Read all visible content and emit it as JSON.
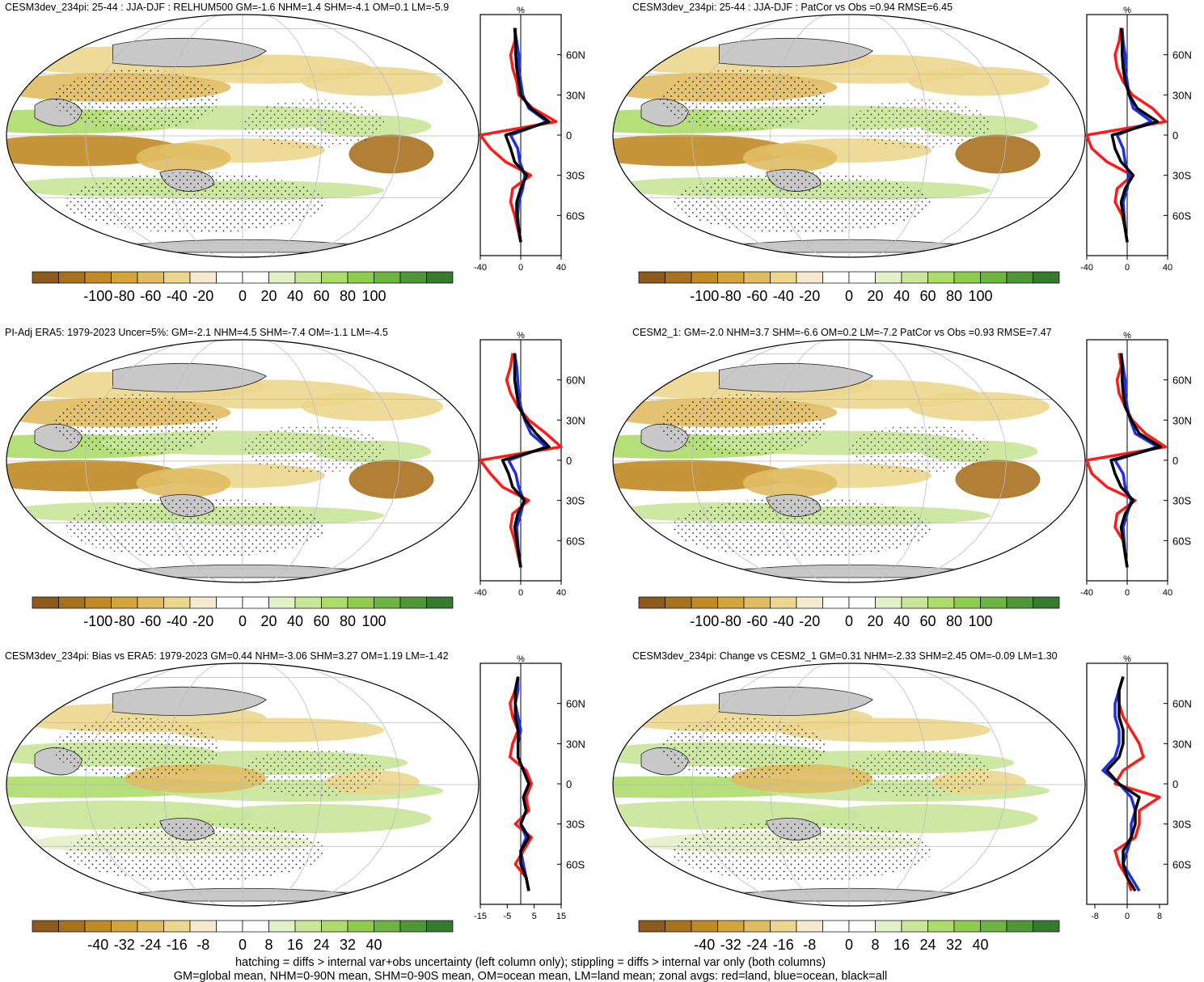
{
  "figure": {
    "footer_line1": "hatching = diffs > internal var+obs uncertainty (left column only); stippling = diffs > internal var only (both columns)",
    "footer_line2": "GM=global mean, NHM=0-90N mean, SHM=0-90S mean, OM=ocean mean, LM=land mean; zonal avgs: red=land, blue=ocean, black=all"
  },
  "chart_data": [
    {
      "type": "heatmap",
      "id": "p1",
      "title": "CESM3dev_234pi: 25-44 : JJA-DJF : RELHUM500 GM=-1.6 NHM=1.4 SHM=-4.1 OM=0.1 LM=-5.9",
      "colorbar": {
        "ticks": [
          "-100",
          "-80",
          "-60",
          "-40",
          "-20",
          "0",
          "20",
          "40",
          "60",
          "80",
          "100"
        ],
        "range": [
          -100,
          100
        ]
      },
      "zonal": {
        "unit": "%",
        "xlim": [
          -40,
          40
        ],
        "xticks": [
          "-40",
          "0",
          "40"
        ],
        "yticks": [
          "60N",
          "30N",
          "0",
          "30S",
          "60S"
        ],
        "lat": [
          80,
          70,
          60,
          50,
          40,
          30,
          20,
          10,
          0,
          -10,
          -20,
          -30,
          -40,
          -50,
          -60,
          -70,
          -80
        ],
        "land": [
          -5,
          -6,
          -10,
          -8,
          -4,
          -2,
          12,
          35,
          -40,
          -30,
          -15,
          10,
          -8,
          -10,
          -6,
          -3,
          0
        ],
        "ocean": [
          -6,
          -4,
          -2,
          -2,
          0,
          2,
          8,
          26,
          -10,
          -3,
          -1,
          4,
          2,
          -2,
          -3,
          -2,
          0
        ],
        "all": [
          -6,
          -5,
          -5,
          -4,
          -2,
          0,
          10,
          28,
          -15,
          -10,
          -6,
          6,
          0,
          -4,
          -4,
          -2,
          0
        ]
      }
    },
    {
      "type": "heatmap",
      "id": "p2",
      "title": "CESM3dev_234pi: 25-44 : JJA-DJF : PatCor vs Obs =0.94 RMSE=6.45",
      "colorbar": {
        "ticks": [
          "-100",
          "-80",
          "-60",
          "-40",
          "-20",
          "0",
          "20",
          "40",
          "60",
          "80",
          "100"
        ],
        "range": [
          -100,
          100
        ]
      },
      "zonal": {
        "unit": "%",
        "xlim": [
          -40,
          40
        ],
        "xticks": [
          "-40",
          "0",
          "40"
        ],
        "yticks": [
          "60N",
          "30N",
          "0",
          "30S",
          "60S"
        ],
        "lat": [
          80,
          70,
          60,
          50,
          40,
          30,
          20,
          10,
          0,
          -10,
          -20,
          -30,
          -40,
          -50,
          -60,
          -70,
          -80
        ],
        "land": [
          -6,
          -8,
          -12,
          -10,
          -4,
          5,
          25,
          38,
          -40,
          -35,
          -20,
          5,
          -10,
          -12,
          -5,
          -2,
          0
        ],
        "ocean": [
          -5,
          -4,
          -2,
          -2,
          0,
          2,
          6,
          24,
          -10,
          -4,
          -2,
          2,
          0,
          -4,
          -3,
          -2,
          0
        ],
        "all": [
          -6,
          -5,
          -5,
          -4,
          -2,
          2,
          10,
          30,
          -15,
          -12,
          -6,
          6,
          -2,
          -6,
          -4,
          -2,
          0
        ]
      }
    },
    {
      "type": "heatmap",
      "id": "p3",
      "title": "PI-Adj ERA5: 1979-2023 Uncer=5%: GM=-2.1 NHM=4.5 SHM=-7.4 OM=-1.1 LM=-4.5",
      "colorbar": {
        "ticks": [
          "-100",
          "-80",
          "-60",
          "-40",
          "-20",
          "0",
          "20",
          "40",
          "60",
          "80",
          "100"
        ],
        "range": [
          -100,
          100
        ]
      },
      "zonal": {
        "unit": "%",
        "xlim": [
          -40,
          40
        ],
        "xticks": [
          "-40",
          "0",
          "40"
        ],
        "yticks": [
          "60N",
          "30N",
          "0",
          "30S",
          "60S"
        ],
        "lat": [
          80,
          70,
          60,
          50,
          40,
          30,
          20,
          10,
          0,
          -10,
          -20,
          -30,
          -40,
          -50,
          -60,
          -70,
          -80
        ],
        "land": [
          -8,
          -10,
          -14,
          -10,
          -3,
          8,
          25,
          40,
          -40,
          -30,
          -18,
          8,
          -8,
          -10,
          -6,
          -3,
          0
        ],
        "ocean": [
          -6,
          -4,
          -3,
          -2,
          0,
          4,
          10,
          25,
          -12,
          -5,
          -2,
          3,
          0,
          -4,
          -3,
          -2,
          0
        ],
        "all": [
          -6,
          -6,
          -6,
          -4,
          -2,
          5,
          15,
          28,
          -18,
          -12,
          -8,
          4,
          -3,
          -6,
          -4,
          -2,
          0
        ]
      }
    },
    {
      "type": "heatmap",
      "id": "p4",
      "title": "CESM2_1: GM=-2.0 NHM=3.7 SHM=-6.6 OM=0.2 LM=-7.2 PatCor vs Obs =0.93 RMSE=7.47",
      "colorbar": {
        "ticks": [
          "-100",
          "-80",
          "-60",
          "-40",
          "-20",
          "0",
          "20",
          "40",
          "60",
          "80",
          "100"
        ],
        "range": [
          -100,
          100
        ]
      },
      "zonal": {
        "unit": "%",
        "xlim": [
          -40,
          40
        ],
        "xticks": [
          "-40",
          "0",
          "40"
        ],
        "yticks": [
          "60N",
          "30N",
          "0",
          "30S",
          "60S"
        ],
        "lat": [
          80,
          70,
          60,
          50,
          40,
          30,
          20,
          10,
          0,
          -10,
          -20,
          -30,
          -40,
          -50,
          -60,
          -70,
          -80
        ],
        "land": [
          -8,
          -6,
          -10,
          -8,
          -2,
          5,
          18,
          38,
          -40,
          -35,
          -20,
          8,
          -10,
          -12,
          -4,
          -2,
          0
        ],
        "ocean": [
          -6,
          -4,
          -2,
          -2,
          0,
          3,
          8,
          30,
          -12,
          -4,
          -2,
          4,
          0,
          -4,
          -3,
          -2,
          0
        ],
        "all": [
          -6,
          -5,
          -5,
          -4,
          -2,
          4,
          12,
          33,
          -16,
          -12,
          -6,
          6,
          -2,
          -6,
          -4,
          -2,
          0
        ]
      }
    },
    {
      "type": "heatmap",
      "id": "p5",
      "title": "CESM3dev_234pi: Bias vs ERA5: 1979-2023 GM=0.44 NHM=-3.06 SHM=3.27 OM=1.19 LM=-1.42",
      "colorbar": {
        "ticks": [
          "-40",
          "-32",
          "-24",
          "-16",
          "-8",
          "0",
          "8",
          "16",
          "24",
          "32",
          "40"
        ],
        "range": [
          -40,
          40
        ]
      },
      "zonal": {
        "unit": "%",
        "xlim": [
          -15,
          15
        ],
        "xticks": [
          "-15",
          "-5",
          "5",
          "15"
        ],
        "yticks": [
          "60N",
          "30N",
          "0",
          "30S",
          "60S"
        ],
        "lat": [
          80,
          70,
          60,
          50,
          40,
          30,
          20,
          10,
          0,
          -10,
          -20,
          -30,
          -40,
          -50,
          -60,
          -70,
          -80
        ],
        "land": [
          -1,
          -2,
          -4,
          -3,
          -1,
          -3,
          -4,
          2,
          4,
          2,
          3,
          -2,
          4,
          1,
          -2,
          2,
          3
        ],
        "ocean": [
          -1,
          -1,
          -2,
          -1,
          0,
          -1,
          -1,
          1,
          3,
          1,
          2,
          0,
          2,
          0,
          1,
          2,
          3
        ],
        "all": [
          -1,
          -2,
          -2,
          -2,
          -1,
          -1,
          -1,
          1,
          3,
          1,
          2,
          0,
          3,
          0,
          0,
          2,
          3
        ]
      }
    },
    {
      "type": "heatmap",
      "id": "p6",
      "title": "CESM3dev_234pi: Change vs CESM2_1 GM=0.31 NHM=-2.33 SHM=2.45 OM=-0.09 LM=1.30",
      "colorbar": {
        "ticks": [
          "-40",
          "-32",
          "-24",
          "-16",
          "-8",
          "0",
          "8",
          "16",
          "24",
          "32",
          "40"
        ],
        "range": [
          -40,
          40
        ]
      },
      "zonal": {
        "unit": "%",
        "xlim": [
          -10,
          10
        ],
        "xticks": [
          "-8",
          "0",
          "8"
        ],
        "yticks": [
          "60N",
          "30N",
          "0",
          "30S",
          "60S"
        ],
        "lat": [
          80,
          70,
          60,
          50,
          40,
          30,
          20,
          10,
          0,
          -10,
          -20,
          -30,
          -40,
          -50,
          -60,
          -70,
          -80
        ],
        "land": [
          -1,
          -2,
          -2,
          -1,
          1,
          3,
          4,
          -1,
          -3,
          8,
          3,
          3,
          2,
          -3,
          -2,
          0,
          1
        ],
        "ocean": [
          -1,
          -2,
          -3,
          -3,
          -2,
          -2,
          -3,
          -6,
          -2,
          1,
          2,
          1,
          1,
          0,
          -1,
          1,
          3
        ],
        "all": [
          -1,
          -2,
          -2,
          -2,
          -1,
          -1,
          -2,
          -5,
          -2,
          3,
          2,
          2,
          1,
          -1,
          -1,
          0,
          2
        ]
      }
    }
  ]
}
